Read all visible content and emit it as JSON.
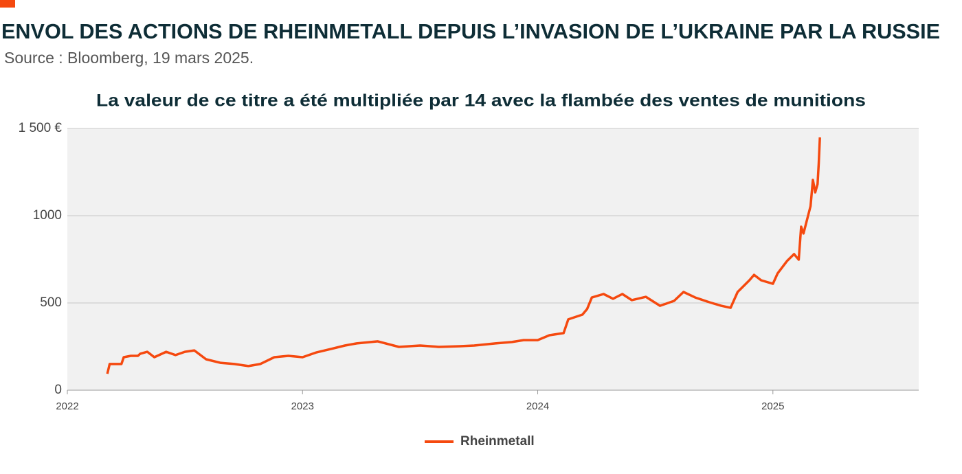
{
  "chart_data": {
    "type": "line",
    "title": "ENVOL DES ACTIONS DE RHEINMETALL DEPUIS L’INVASION DE L’UKRAINE PAR LA RUSSIE",
    "subtitle": "Source : Bloomberg, 19 mars 2025.",
    "chart_title": "La valeur de ce titre a été multipliée par 14 avec la flambée des ventes de munitions",
    "x": [
      2022.17,
      2022.18,
      2022.23,
      2022.24,
      2022.27,
      2022.3,
      2022.31,
      2022.34,
      2022.37,
      2022.42,
      2022.46,
      2022.5,
      2022.54,
      2022.59,
      2022.65,
      2022.71,
      2022.77,
      2022.82,
      2022.88,
      2022.94,
      2023,
      2023.06,
      2023.12,
      2023.18,
      2023.23,
      2023.32,
      2023.41,
      2023.5,
      2023.58,
      2023.67,
      2023.73,
      2023.82,
      2023.89,
      2023.94,
      2024,
      2024.05,
      2024.11,
      2024.13,
      2024.19,
      2024.21,
      2024.23,
      2024.28,
      2024.32,
      2024.36,
      2024.4,
      2024.46,
      2024.52,
      2024.58,
      2024.62,
      2024.67,
      2024.73,
      2024.78,
      2024.82,
      2024.85,
      2024.9,
      2024.92,
      2024.95,
      2025,
      2025.02,
      2025.06,
      2025.09,
      2025.11,
      2025.12,
      2025.13,
      2025.16,
      2025.17,
      2025.18,
      2025.19,
      2025.195,
      2025.2
    ],
    "series": [
      {
        "name": "Rheinmetall",
        "color": "#f5490f",
        "values": [
          94,
          150,
          150,
          189,
          197,
          197,
          209,
          220,
          189,
          220,
          201,
          220,
          228,
          177,
          157,
          150,
          138,
          150,
          189,
          197,
          189,
          217,
          236,
          256,
          268,
          280,
          248,
          256,
          248,
          252,
          256,
          268,
          276,
          287,
          287,
          315,
          327,
          406,
          433,
          465,
          531,
          551,
          524,
          551,
          516,
          535,
          484,
          512,
          563,
          531,
          504,
          484,
          472,
          563,
          630,
          661,
          630,
          610,
          669,
          740,
          780,
          748,
          937,
          898,
          1055,
          1205,
          1134,
          1181,
          1299,
          1449
        ]
      }
    ],
    "xlim": [
      2022,
      2025.62
    ],
    "xticks": [
      2022,
      2023,
      2024,
      2025
    ],
    "ylim": [
      0,
      1500
    ],
    "yticks": [
      0,
      500,
      1000,
      {
        "value": 1500,
        "label": "1 500 €"
      }
    ],
    "grid": true,
    "legend": "bottom"
  }
}
